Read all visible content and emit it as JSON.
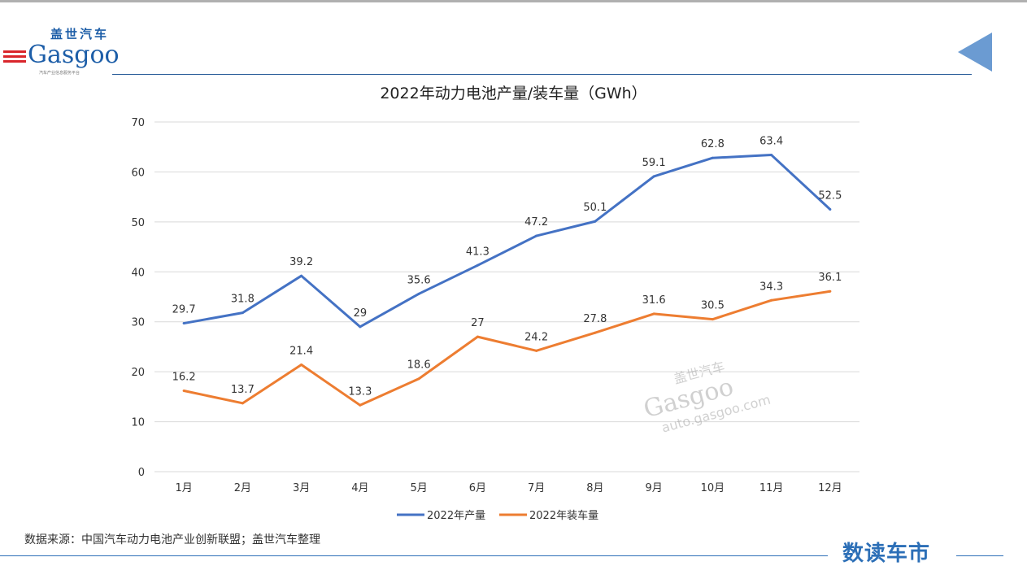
{
  "logo": {
    "cn": "盖世汽车",
    "en": "Gasgoo",
    "tagline": "汽车产业信息服务平台"
  },
  "watermark": {
    "cn": "盖世汽车",
    "en": "Gasgoo",
    "url": "auto.gasgoo.com"
  },
  "footer": {
    "source": "数据来源：中国汽车动力电池产业创新联盟；盖世汽车整理",
    "brand": "数读车市"
  },
  "colors": {
    "production": "#4472c4",
    "installation": "#ed7d31",
    "grid": "#d9d9d9"
  },
  "chart_data": {
    "type": "line",
    "title": "2022年动力电池产量/装车量（GWh）",
    "categories": [
      "1月",
      "2月",
      "3月",
      "4月",
      "5月",
      "6月",
      "7月",
      "8月",
      "9月",
      "10月",
      "11月",
      "12月"
    ],
    "ylim": [
      0,
      70
    ],
    "yticks": [
      0,
      10,
      20,
      30,
      40,
      50,
      60,
      70
    ],
    "grid": true,
    "legend": "bottom",
    "series": [
      {
        "name": "2022年产量",
        "values": [
          29.7,
          31.8,
          39.2,
          29,
          35.6,
          41.3,
          47.2,
          50.1,
          59.1,
          62.8,
          63.4,
          52.5
        ]
      },
      {
        "name": "2022年装车量",
        "values": [
          16.2,
          13.7,
          21.4,
          13.3,
          18.6,
          27,
          24.2,
          27.8,
          31.6,
          30.5,
          34.3,
          36.1
        ]
      }
    ]
  }
}
